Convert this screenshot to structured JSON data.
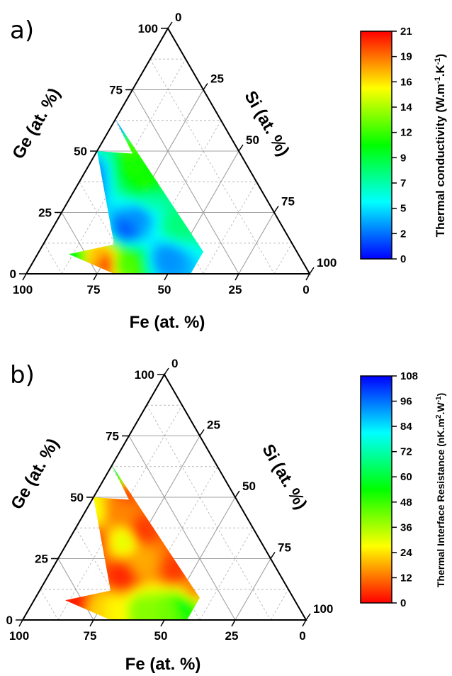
{
  "chart_data": [
    {
      "type": "heatmap",
      "subtype": "ternary-contour",
      "panel_label": "a)",
      "axes": {
        "fe": {
          "label": "Fe (at. %)",
          "ticks": [
            "100",
            "75",
            "50",
            "25",
            "0"
          ]
        },
        "ge": {
          "label": "Ge (at. %)",
          "ticks": [
            "0",
            "25",
            "50",
            "75",
            "100"
          ]
        },
        "si": {
          "label": "Si (at. %)",
          "ticks": [
            "0",
            "25",
            "50",
            "75",
            "100"
          ]
        }
      },
      "grid": true,
      "colorbar": {
        "label": "Thermal conductivity (W.m-1.K-1)",
        "ticks": [
          "0",
          "2",
          "5",
          "7",
          "9",
          "12",
          "14",
          "16",
          "19",
          "21"
        ],
        "range": [
          0,
          21
        ],
        "colors": [
          "#0000ff",
          "#00ffff",
          "#00ff00",
          "#ffff00",
          "#ff0000"
        ]
      },
      "region_vertices_fe_ge_si": [
        [
          81,
          8,
          11
        ],
        [
          69,
          0,
          31
        ],
        [
          50,
          0,
          50
        ],
        [
          42,
          0,
          58
        ],
        [
          33,
          9,
          58
        ],
        [
          37,
          63,
          0
        ],
        [
          38,
          49,
          13
        ],
        [
          50,
          50,
          0
        ],
        [
          63,
          12,
          25
        ]
      ],
      "samples_fe_ge_si_value": [
        [
          70,
          4,
          26,
          20
        ],
        [
          72,
          7,
          21,
          17
        ],
        [
          74,
          2,
          24,
          18
        ],
        [
          80,
          6,
          14,
          10
        ],
        [
          64,
          4,
          32,
          12
        ],
        [
          56,
          18,
          26,
          2
        ],
        [
          66,
          32,
          2,
          1
        ],
        [
          60,
          40,
          0,
          1
        ],
        [
          55,
          44,
          1,
          3
        ],
        [
          48,
          24,
          28,
          3
        ],
        [
          42,
          30,
          28,
          7
        ],
        [
          40,
          44,
          16,
          11
        ],
        [
          38,
          52,
          10,
          12
        ],
        [
          40,
          36,
          24,
          11
        ],
        [
          36,
          20,
          44,
          8
        ],
        [
          47,
          6,
          47,
          3
        ],
        [
          46,
          52,
          2,
          7
        ],
        [
          33,
          62,
          5,
          2
        ]
      ]
    },
    {
      "type": "heatmap",
      "subtype": "ternary-contour",
      "panel_label": "b)",
      "axes": {
        "fe": {
          "label": "Fe (at. %)",
          "ticks": [
            "100",
            "75",
            "50",
            "25",
            "0"
          ]
        },
        "ge": {
          "label": "Ge (at. %)",
          "ticks": [
            "0",
            "25",
            "50",
            "75",
            "100"
          ]
        },
        "si": {
          "label": "Si (at. %)",
          "ticks": [
            "0",
            "25",
            "50",
            "75",
            "100"
          ]
        }
      },
      "grid": true,
      "colorbar": {
        "label": "Thermal Interface Resistance (nK.m2.W-1)",
        "ticks": [
          "0",
          "12",
          "24",
          "36",
          "48",
          "60",
          "72",
          "84",
          "96",
          "108"
        ],
        "range": [
          0,
          108
        ],
        "colors": [
          "#ff0000",
          "#ffff00",
          "#00ff00",
          "#00ffff",
          "#0000ff"
        ]
      },
      "region_vertices_fe_ge_si": [
        [
          81,
          8,
          11
        ],
        [
          69,
          0,
          31
        ],
        [
          50,
          0,
          50
        ],
        [
          42,
          0,
          58
        ],
        [
          33,
          9,
          58
        ],
        [
          37,
          63,
          0
        ],
        [
          38,
          49,
          13
        ],
        [
          50,
          50,
          0
        ],
        [
          63,
          12,
          25
        ]
      ],
      "samples_fe_ge_si_value": [
        [
          78,
          6,
          16,
          3
        ],
        [
          72,
          4,
          24,
          22
        ],
        [
          66,
          4,
          30,
          26
        ],
        [
          56,
          4,
          40,
          40
        ],
        [
          46,
          4,
          50,
          42
        ],
        [
          40,
          6,
          54,
          56
        ],
        [
          36,
          60,
          4,
          58
        ],
        [
          60,
          32,
          8,
          6
        ],
        [
          56,
          18,
          26,
          4
        ],
        [
          48,
          32,
          20,
          30
        ],
        [
          46,
          24,
          30,
          18
        ],
        [
          44,
          44,
          12,
          14
        ],
        [
          40,
          36,
          24,
          6
        ],
        [
          38,
          52,
          10,
          8
        ],
        [
          36,
          20,
          44,
          6
        ],
        [
          54,
          44,
          2,
          28
        ],
        [
          66,
          28,
          6,
          10
        ],
        [
          34,
          12,
          54,
          14
        ]
      ]
    }
  ]
}
